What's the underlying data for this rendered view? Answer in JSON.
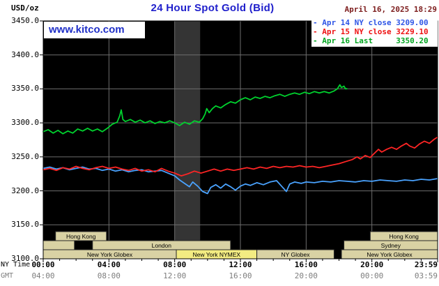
{
  "header": {
    "unit": "USD/oz",
    "title": "24 Hour Spot Gold (Bid)",
    "datetime": "April 16, 2025 18:29",
    "watermark": "www.kitco.com"
  },
  "legend": {
    "items": [
      {
        "marker": "-",
        "label": "Apr 14 NY close 3209.00",
        "color": "#2e55e6"
      },
      {
        "marker": "-",
        "label": "Apr 15 NY close 3229.10",
        "color": "#ee1111"
      },
      {
        "marker": "-",
        "label": "Apr 16 Last     3350.20",
        "color": "#00a41f"
      }
    ]
  },
  "axes": {
    "ny_time_label": "NY Time",
    "gmt_label": "GMT",
    "x_tick_hours": [
      0,
      4,
      8,
      12,
      16,
      20,
      24
    ],
    "x_ticks_ny": [
      "00:00",
      "04:00",
      "08:00",
      "12:00",
      "16:00",
      "20:00",
      "23:59"
    ],
    "x_ticks_gmt": [
      "04:00",
      "08:00",
      "12:00",
      "16:00",
      "20:00",
      "00:00",
      "03:59"
    ],
    "y_tick_values": [
      3450,
      3400,
      3350,
      3300,
      3250,
      3200,
      3150,
      3100
    ],
    "y_tick_labels": [
      "3450.0",
      "3400.0",
      "3350.0",
      "3300.0",
      "3250.0",
      "3200.0",
      "3150.0",
      "3100.0"
    ]
  },
  "chart_data": {
    "type": "line",
    "title": "24 Hour Spot Gold (Bid)",
    "ylabel": "USD/oz",
    "xlabel": "NY Time (hours 00:00-23:59)",
    "xlim_hours": [
      0,
      24
    ],
    "ylim": [
      3100,
      3450
    ],
    "grid": true,
    "plot_bg": "#000000",
    "grid_color": "#6e6e6e",
    "session_highlight_band": {
      "start_hour": 8.0,
      "end_hour": 9.55,
      "color": "#343434"
    },
    "series": [
      {
        "name": "Apr 14 (NY close 3209.00)",
        "color": "#4aa3ff",
        "x": [
          0,
          0.4,
          0.8,
          1.2,
          1.6,
          2,
          2.4,
          2.8,
          3.2,
          3.6,
          4,
          4.4,
          4.8,
          5.2,
          5.6,
          6,
          6.4,
          6.8,
          7.2,
          7.6,
          8,
          8.3,
          8.6,
          8.9,
          9.1,
          9.4,
          9.7,
          10,
          10.2,
          10.5,
          10.8,
          11.1,
          11.4,
          11.7,
          12,
          12.3,
          12.6,
          13,
          13.4,
          13.8,
          14.2,
          14.5,
          14.8,
          15,
          15.3,
          15.7,
          16,
          16.5,
          17,
          17.5,
          18,
          18.5,
          19,
          19.5,
          20,
          20.5,
          21,
          21.5,
          22,
          22.5,
          23,
          23.5,
          24
        ],
        "y": [
          3233,
          3235,
          3232,
          3234,
          3231,
          3233,
          3235,
          3232,
          3233,
          3230,
          3232,
          3229,
          3231,
          3228,
          3230,
          3231,
          3228,
          3229,
          3230,
          3226,
          3222,
          3216,
          3211,
          3206,
          3213,
          3207,
          3199,
          3196,
          3205,
          3209,
          3204,
          3210,
          3206,
          3201,
          3207,
          3210,
          3208,
          3212,
          3209,
          3213,
          3215,
          3207,
          3199,
          3210,
          3213,
          3211,
          3213,
          3212,
          3214,
          3213,
          3215,
          3214,
          3213,
          3215,
          3214,
          3216,
          3215,
          3214,
          3216,
          3215,
          3217,
          3216,
          3218
        ]
      },
      {
        "name": "Apr 15 (NY close 3229.10)",
        "color": "#ff2525",
        "x": [
          0,
          0.4,
          0.8,
          1.2,
          1.6,
          2,
          2.4,
          2.8,
          3.2,
          3.6,
          4,
          4.4,
          4.8,
          5.2,
          5.6,
          6,
          6.4,
          6.8,
          7.2,
          7.6,
          8,
          8.4,
          8.8,
          9.2,
          9.6,
          10,
          10.4,
          10.8,
          11.2,
          11.6,
          12,
          12.4,
          12.8,
          13.2,
          13.6,
          14,
          14.4,
          14.8,
          15.2,
          15.6,
          16,
          16.4,
          16.8,
          17.2,
          17.6,
          18,
          18.4,
          18.8,
          19.1,
          19.3,
          19.6,
          19.9,
          20.1,
          20.4,
          20.6,
          20.9,
          21.2,
          21.5,
          21.8,
          22.1,
          22.3,
          22.6,
          22.9,
          23.2,
          23.5,
          23.8,
          24
        ],
        "y": [
          3231,
          3233,
          3230,
          3234,
          3232,
          3236,
          3233,
          3231,
          3234,
          3236,
          3233,
          3235,
          3232,
          3230,
          3233,
          3229,
          3231,
          3228,
          3233,
          3229,
          3226,
          3222,
          3225,
          3229,
          3226,
          3229,
          3232,
          3229,
          3232,
          3230,
          3232,
          3234,
          3232,
          3235,
          3233,
          3236,
          3234,
          3236,
          3235,
          3237,
          3235,
          3236,
          3234,
          3236,
          3238,
          3240,
          3243,
          3246,
          3250,
          3247,
          3252,
          3249,
          3254,
          3261,
          3257,
          3261,
          3264,
          3261,
          3266,
          3270,
          3266,
          3263,
          3269,
          3273,
          3270,
          3276,
          3279
        ]
      },
      {
        "name": "Apr 16 (Last 3350.20)",
        "color": "#00d22e",
        "x": [
          0,
          0.3,
          0.6,
          0.9,
          1.2,
          1.5,
          1.8,
          2.1,
          2.4,
          2.7,
          3,
          3.3,
          3.6,
          3.9,
          4.2,
          4.5,
          4.65,
          4.75,
          4.85,
          5,
          5.3,
          5.6,
          5.9,
          6.2,
          6.5,
          6.8,
          7.1,
          7.4,
          7.7,
          8,
          8.3,
          8.6,
          8.9,
          9.2,
          9.5,
          9.7,
          9.85,
          9.95,
          10.1,
          10.3,
          10.5,
          10.8,
          11.1,
          11.4,
          11.7,
          12,
          12.3,
          12.6,
          12.9,
          13.2,
          13.5,
          13.8,
          14.1,
          14.4,
          14.7,
          15,
          15.3,
          15.6,
          15.9,
          16.2,
          16.5,
          16.8,
          17.1,
          17.4,
          17.7,
          17.9,
          18.05,
          18.15,
          18.3,
          18.4,
          18.48
        ],
        "y": [
          3287,
          3290,
          3285,
          3289,
          3284,
          3288,
          3285,
          3291,
          3288,
          3292,
          3288,
          3291,
          3287,
          3292,
          3298,
          3301,
          3310,
          3319,
          3305,
          3302,
          3305,
          3301,
          3304,
          3300,
          3303,
          3299,
          3302,
          3300,
          3303,
          3300,
          3296,
          3301,
          3298,
          3303,
          3301,
          3306,
          3313,
          3321,
          3315,
          3321,
          3325,
          3322,
          3327,
          3331,
          3329,
          3334,
          3337,
          3334,
          3338,
          3336,
          3339,
          3337,
          3340,
          3342,
          3339,
          3342,
          3344,
          3342,
          3345,
          3343,
          3346,
          3344,
          3346,
          3344,
          3347,
          3350,
          3356,
          3352,
          3354,
          3350,
          3350.2
        ]
      }
    ]
  },
  "sessions": {
    "bar_color": "#d9d2a4",
    "highlight_color": "#f3ec82",
    "rows": [
      {
        "bars": [
          {
            "label": "Hong Kong",
            "start": 0.75,
            "end": 3.85
          },
          {
            "label": "Hong Kong",
            "start": 19.9,
            "end": 24
          }
        ]
      },
      {
        "bars": [
          {
            "label": "",
            "start": 0,
            "end": 1.9
          },
          {
            "label": "London",
            "start": 3.0,
            "end": 11.4
          },
          {
            "label": "Sydney",
            "start": 18.3,
            "end": 24
          }
        ]
      },
      {
        "bars": [
          {
            "label": "New York Globex",
            "start": 0,
            "end": 8.1
          },
          {
            "label": "New York NYMEX",
            "start": 8.1,
            "end": 13.0,
            "highlight": true
          },
          {
            "label": "NY Globex",
            "start": 13.0,
            "end": 17.7
          },
          {
            "label": "New York Globex",
            "start": 18.15,
            "end": 24
          }
        ]
      }
    ]
  }
}
